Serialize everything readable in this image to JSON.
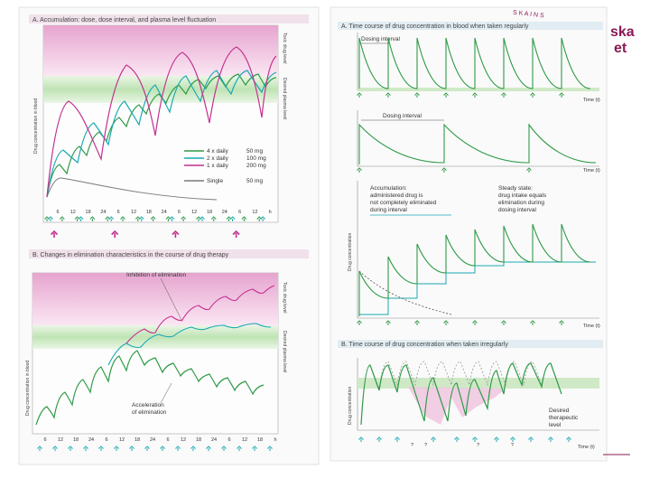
{
  "logo": {
    "arc_text": "S K A  I N S",
    "line1": "ska",
    "line2": "et",
    "color": "#8b1a55"
  },
  "colors": {
    "green": "#2e9a47",
    "cyan": "#1aa9b3",
    "magenta": "#c3308f",
    "gray": "#7a7a7a",
    "pink_band": "#f1c9e3",
    "green_band": "#cfe9c7"
  },
  "left_page": {
    "panel_a": {
      "title": "A. Accumulation: dose, dose interval, and plasma level fluctuation",
      "ylabel": "Drug concentration in blood",
      "toxic_label": "Toxic drug level",
      "desired_label": "Desired plasma level",
      "legend": [
        {
          "freq": "4 x daily",
          "dose": "50 mg"
        },
        {
          "freq": "2 x daily",
          "dose": "100 mg"
        },
        {
          "freq": "1 x daily",
          "dose": "200 mg"
        },
        {
          "freq": "Single",
          "dose": "50 mg"
        }
      ],
      "x_ticks": [
        "6",
        "12",
        "18",
        "24",
        "6",
        "12",
        "18",
        "24",
        "6",
        "12",
        "18",
        "24",
        "6",
        "12",
        "h"
      ]
    },
    "panel_b": {
      "title": "B. Changes in elimination characteristics in the course of drug therapy",
      "ylabel": "Drug concentration in blood",
      "toxic_label": "Toxic drug level",
      "desired_label": "Desired plasma level",
      "inhibition_label": "Inhibition of elimination",
      "acceleration_line1": "Acceleration",
      "acceleration_line2": "of elimination",
      "x_ticks": [
        "6",
        "12",
        "18",
        "24",
        "6",
        "12",
        "18",
        "24",
        "6",
        "12",
        "18",
        "24",
        "6",
        "12",
        "18",
        "h"
      ]
    }
  },
  "right_page": {
    "panel_a": {
      "title": "A. Time course of drug concentration in blood when taken regularly",
      "graph1_label": "Dosing interval",
      "graph2_label": "Dosing interval",
      "time_label": "Time (t)",
      "ylabel": "Drug concentration",
      "accumulation_lines": [
        "Accumulation:",
        "administered drug is",
        "not completely eliminated",
        "during interval"
      ],
      "steady_lines": [
        "Steady state:",
        "drug intake equals",
        "elimination during",
        "dosing interval"
      ]
    },
    "panel_b": {
      "title": "B. Time course of drug concentration when taken irregularly",
      "ylabel": "Drug concentration",
      "desired_lines": [
        "Desired",
        "therapeutic",
        "level"
      ],
      "time_label": "Time (t)",
      "question_marks": [
        "?",
        "?",
        "?",
        "?"
      ]
    }
  }
}
